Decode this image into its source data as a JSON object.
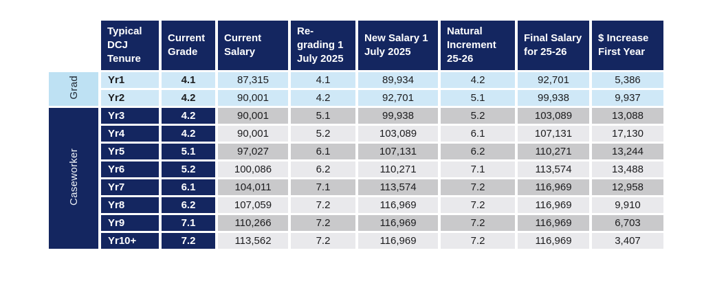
{
  "colors": {
    "navy": "#142660",
    "grad_label_blue": "#BEE1F3",
    "grad_row_blue": "#CFE8F7",
    "gray_dark": "#C9C9CB",
    "gray_light": "#E9E9EC",
    "header_text": "#FFFFFF",
    "body_text": "#1B1B1D"
  },
  "chart_data": {
    "type": "table",
    "columns": [
      "Typical DCJ Tenure",
      "Current Grade",
      "Current Salary",
      "Re-grading 1 July 2025",
      "New Salary 1 July 2025",
      "Natural Increment 25-26",
      "Final Salary for 25-26",
      "$ Increase First Year"
    ],
    "groups": [
      {
        "label": "Grad",
        "rows": [
          {
            "cells": [
              "Yr1",
              "4.1",
              "87,315",
              "4.1",
              "89,934",
              "4.2",
              "92,701",
              "5,386"
            ]
          },
          {
            "cells": [
              "Yr2",
              "4.2",
              "90,001",
              "4.2",
              "92,701",
              "5.1",
              "99,938",
              "9,937"
            ]
          }
        ]
      },
      {
        "label": "Caseworker",
        "rows": [
          {
            "cells": [
              "Yr3",
              "4.2",
              "90,001",
              "5.1",
              "99,938",
              "5.2",
              "103,089",
              "13,088"
            ]
          },
          {
            "cells": [
              "Yr4",
              "4.2",
              "90,001",
              "5.2",
              "103,089",
              "6.1",
              "107,131",
              "17,130"
            ]
          },
          {
            "cells": [
              "Yr5",
              "5.1",
              "97,027",
              "6.1",
              "107,131",
              "6.2",
              "110,271",
              "13,244"
            ]
          },
          {
            "cells": [
              "Yr6",
              "5.2",
              "100,086",
              "6.2",
              "110,271",
              "7.1",
              "113,574",
              "13,488"
            ]
          },
          {
            "cells": [
              "Yr7",
              "6.1",
              "104,011",
              "7.1",
              "113,574",
              "7.2",
              "116,969",
              "12,958"
            ]
          },
          {
            "cells": [
              "Yr8",
              "6.2",
              "107,059",
              "7.2",
              "116,969",
              "7.2",
              "116,969",
              "9,910"
            ]
          },
          {
            "cells": [
              "Yr9",
              "7.1",
              "110,266",
              "7.2",
              "116,969",
              "7.2",
              "116,969",
              "6,703"
            ]
          },
          {
            "cells": [
              "Yr10+",
              "7.2",
              "113,562",
              "7.2",
              "116,969",
              "7.2",
              "116,969",
              "3,407"
            ]
          }
        ]
      }
    ]
  }
}
